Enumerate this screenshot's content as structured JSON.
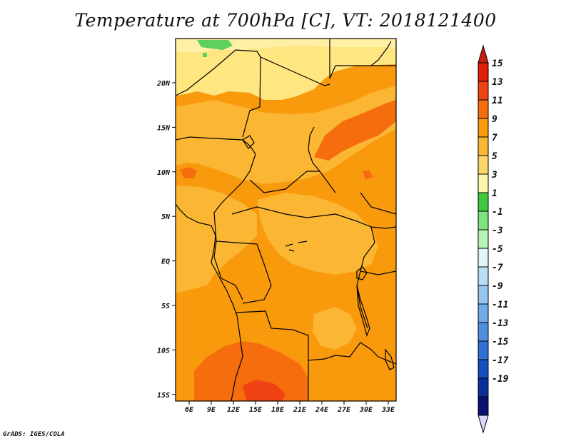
{
  "title": "Temperature at 700hPa [C], VT: 2018121400",
  "credit": "GrADS: IGES/COLA",
  "map": {
    "lon_labels": [
      "6E",
      "9E",
      "12E",
      "15E",
      "18E",
      "21E",
      "24E",
      "27E",
      "30E",
      "33E"
    ],
    "lat_labels": [
      "20N",
      "15N",
      "10N",
      "5N",
      "EQ",
      "5S",
      "10S",
      "15S"
    ],
    "fill_colors": {
      "pale_yellow": "#ffe680",
      "light_orange": "#fbb733",
      "orange": "#f99a0d",
      "dark_orange": "#f56d0c",
      "green": "#5ed05e",
      "coast_line": "#000000"
    }
  },
  "colorbar": {
    "labels": [
      "15",
      "13",
      "11",
      "9",
      "7",
      "5",
      "3",
      "1",
      "-1",
      "-3",
      "-5",
      "-7",
      "-9",
      "-11",
      "-13",
      "-15",
      "-17",
      "-19"
    ],
    "colors": [
      "#e01f0c",
      "#f04314",
      "#f56d0c",
      "#f99a0d",
      "#fbb733",
      "#fcd766",
      "#fdf7a8",
      "#3fc93f",
      "#7fe37f",
      "#b6f5b6",
      "#dff7f7",
      "#b8dff5",
      "#94c6f0",
      "#6fabe9",
      "#4f8fe0",
      "#2f6fd6",
      "#1550c2",
      "#0a2f9c",
      "#0a1070"
    ],
    "tip_top_color": "#c71f0c",
    "tip_bottom_color": "#d8d8f8"
  }
}
